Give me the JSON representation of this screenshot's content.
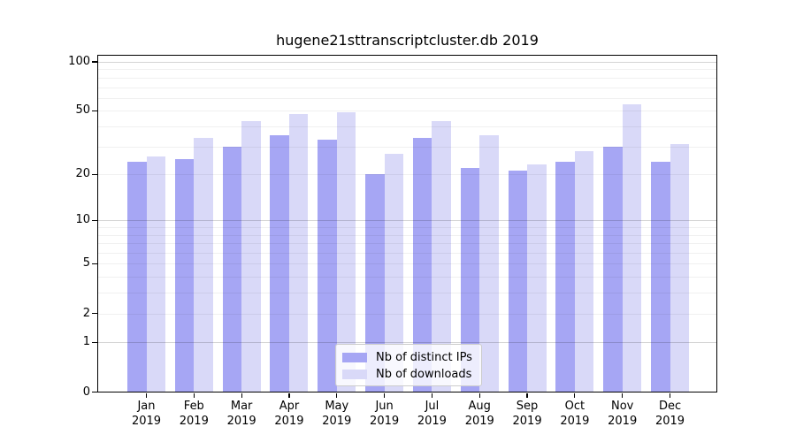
{
  "chart_data": {
    "type": "bar",
    "title": "hugene21sttranscriptcluster.db 2019",
    "categories": [
      "Jan",
      "Feb",
      "Mar",
      "Apr",
      "May",
      "Jun",
      "Jul",
      "Aug",
      "Sep",
      "Oct",
      "Nov",
      "Dec"
    ],
    "category_year": "2019",
    "series": [
      {
        "name": "Nb of distinct IPs",
        "color": "#a6a6f4",
        "values": [
          24,
          25,
          30,
          35,
          33,
          20,
          34,
          22,
          21,
          24,
          30,
          24
        ]
      },
      {
        "name": "Nb of downloads",
        "color": "#d9d9f8",
        "values": [
          26,
          34,
          43,
          48,
          49,
          27,
          43,
          35,
          23,
          28,
          55,
          31
        ]
      }
    ],
    "yscale": "log1p",
    "ylim": [
      0,
      100
    ],
    "yticks": [
      100,
      50,
      20,
      10,
      5,
      2,
      1,
      0
    ],
    "gridlines": {
      "major": [
        1,
        10,
        100
      ],
      "minor": [
        2,
        3,
        4,
        5,
        6,
        7,
        8,
        9,
        20,
        30,
        40,
        50,
        60,
        70,
        80,
        90
      ]
    },
    "legend": {
      "position": "inside-bottom-center"
    }
  }
}
